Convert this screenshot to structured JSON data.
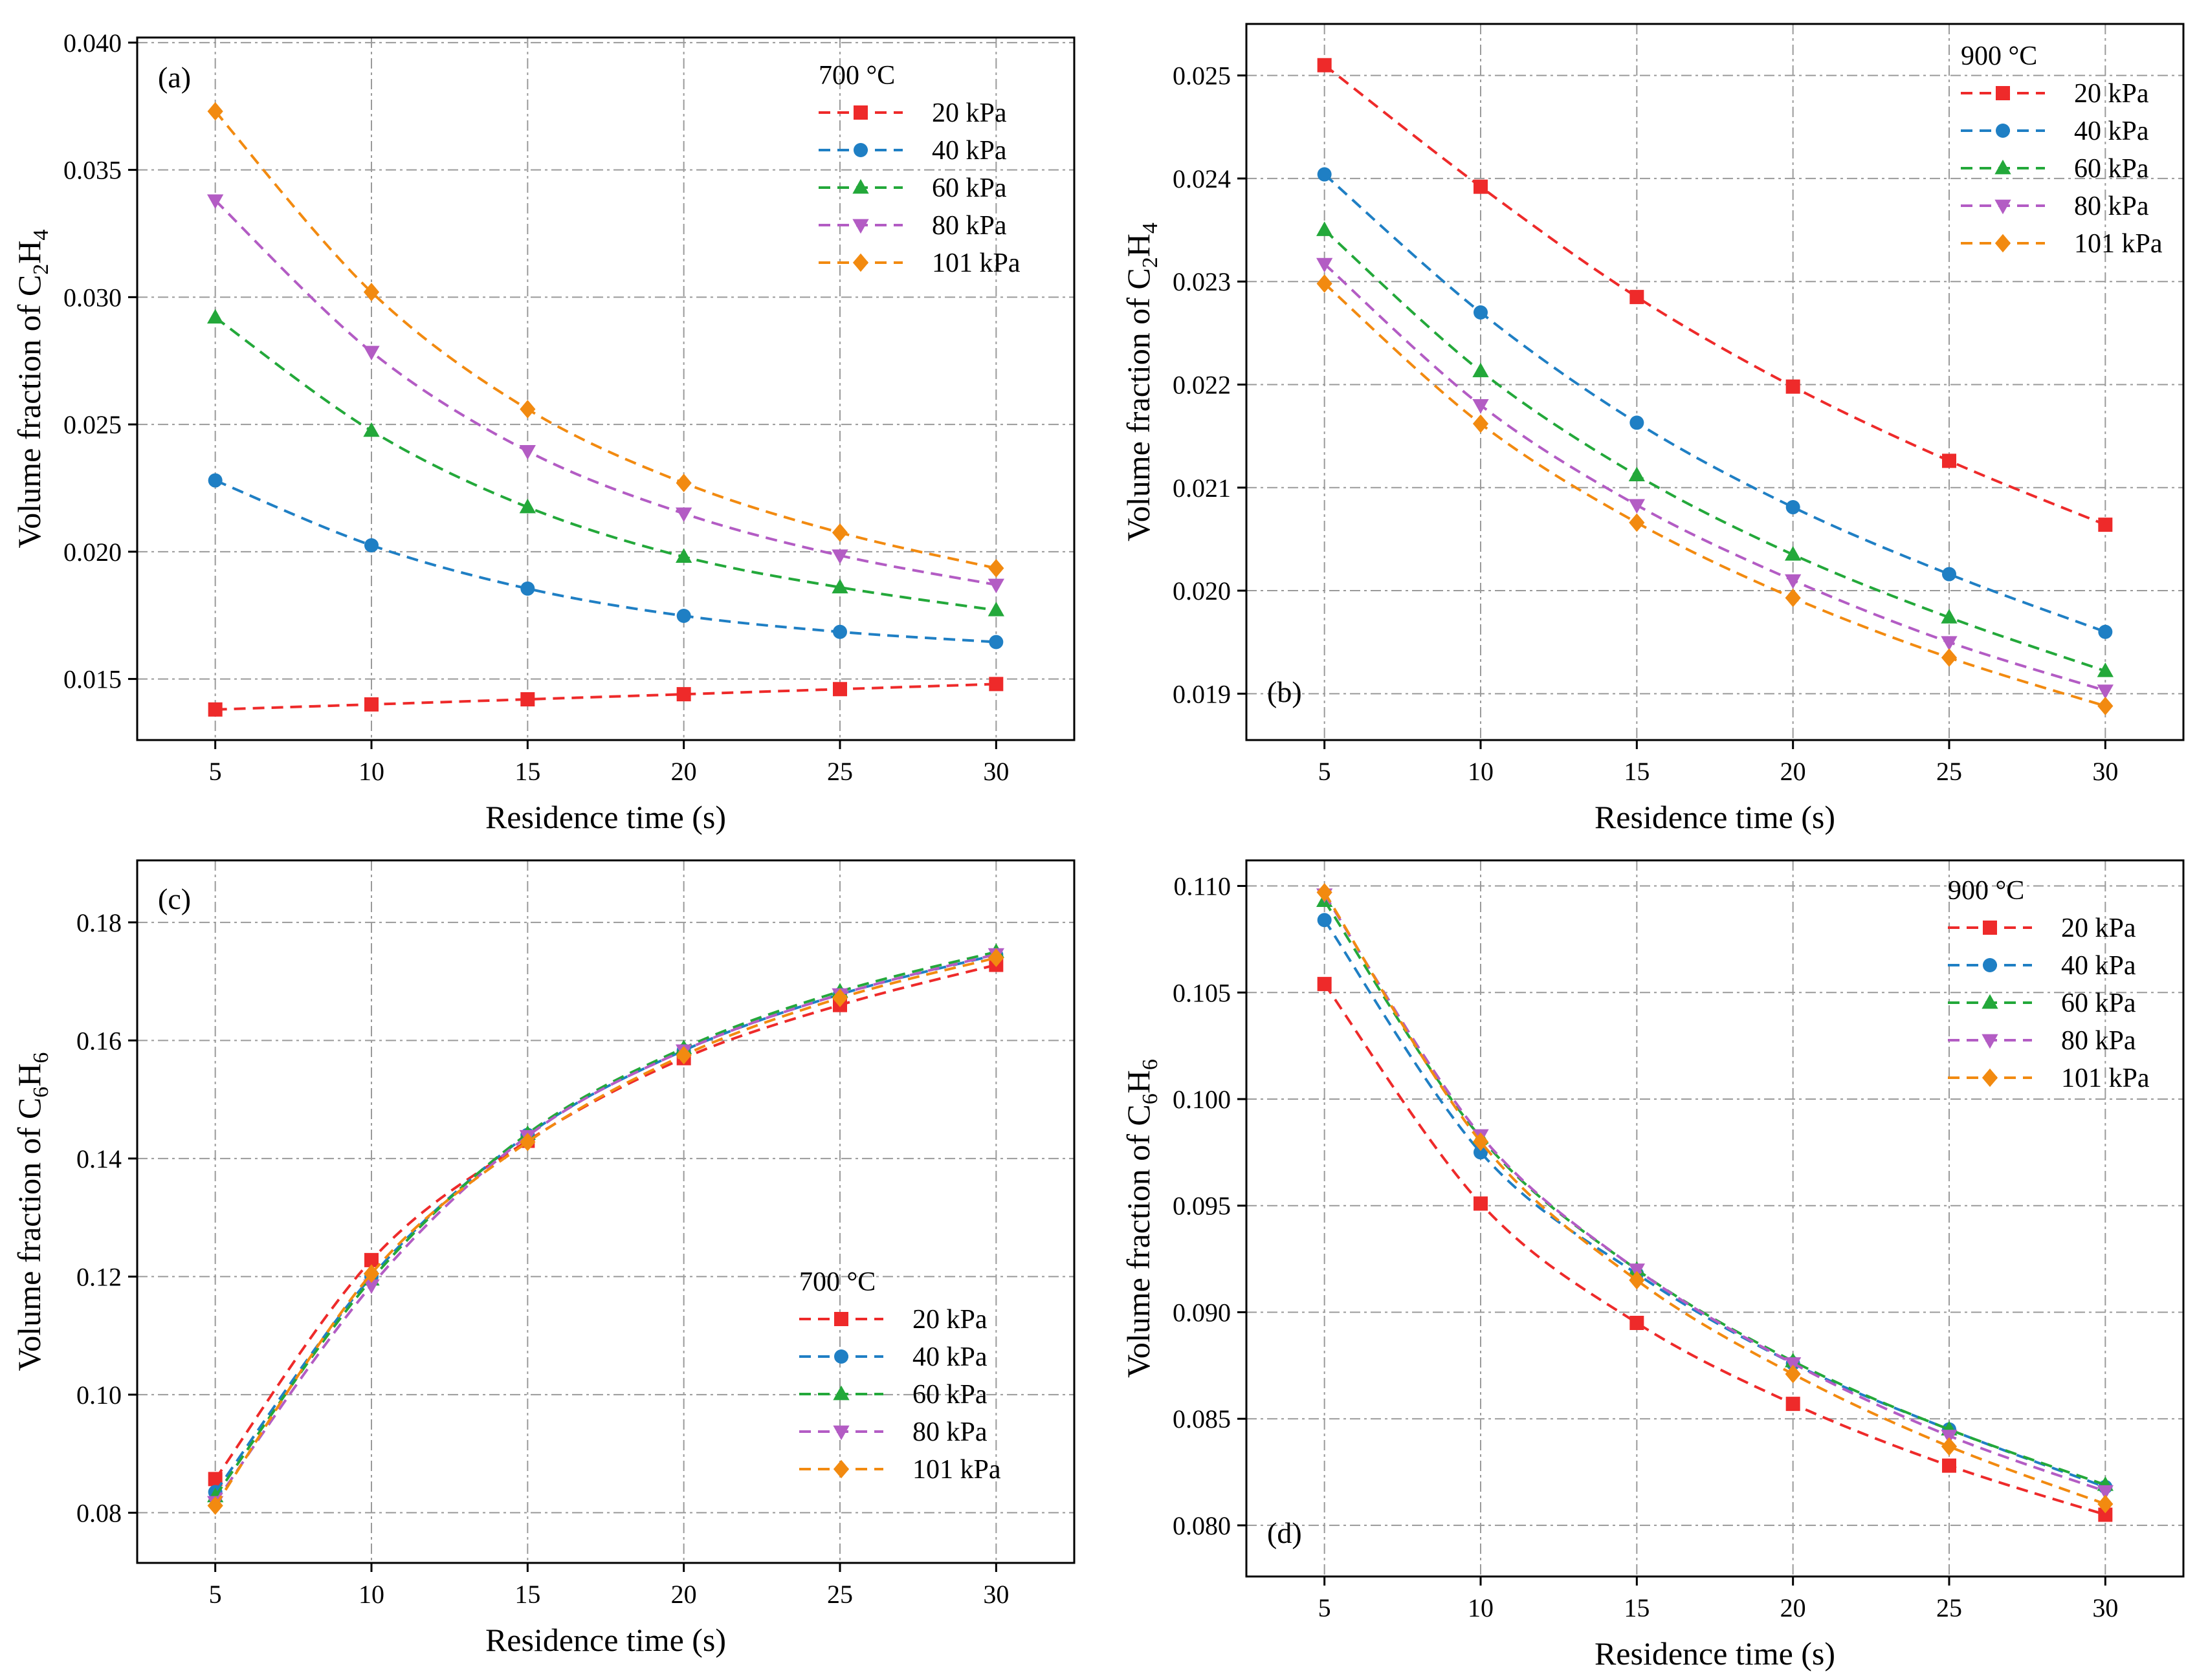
{
  "figure_title": "",
  "chart_data": [
    {
      "type": "line",
      "panel_label": "(a)",
      "title": "",
      "xlabel": "Residence time (s)",
      "ylabel": "Volume fraction of C2H4",
      "ylabel_parts": {
        "prefix": "Volume fraction of C",
        "sub1": "2",
        "mid": "H",
        "sub2": "4"
      },
      "x": [
        5,
        10,
        15,
        20,
        25,
        30
      ],
      "xlim": [
        2.5,
        32.5
      ],
      "ylim": [
        0.0126,
        0.0402
      ],
      "xticks": [
        5,
        10,
        15,
        20,
        25,
        30
      ],
      "yticks": [
        0.015,
        0.02,
        0.025,
        0.03,
        0.035,
        0.04
      ],
      "ytick_labels": [
        "0.015",
        "0.020",
        "0.025",
        "0.030",
        "0.035",
        "0.040"
      ],
      "legend_title": "700 °C",
      "legend_position": "top-right",
      "series": [
        {
          "name": "20 kPa",
          "color": "#ee2a2a",
          "marker": "square",
          "values": [
            0.0138,
            0.014,
            0.0142,
            0.0144,
            0.0146,
            0.0148
          ]
        },
        {
          "name": "40 kPa",
          "color": "#1f7fc4",
          "marker": "circle",
          "values": [
            0.0228,
            0.02025,
            0.01855,
            0.01748,
            0.01685,
            0.01645
          ]
        },
        {
          "name": "60 kPa",
          "color": "#23a83a",
          "marker": "triangle-up",
          "values": [
            0.0292,
            0.02475,
            0.02175,
            0.0198,
            0.0186,
            0.0177
          ]
        },
        {
          "name": "80 kPa",
          "color": "#b35cc4",
          "marker": "triangle-down",
          "values": [
            0.0338,
            0.02785,
            0.02395,
            0.0215,
            0.01985,
            0.0187
          ]
        },
        {
          "name": "101 kPa",
          "color": "#f28a10",
          "marker": "diamond",
          "values": [
            0.0373,
            0.0302,
            0.0256,
            0.0227,
            0.02075,
            0.01935
          ]
        }
      ]
    },
    {
      "type": "line",
      "panel_label": "(b)",
      "title": "",
      "xlabel": "Residence time (s)",
      "ylabel": "Volume fraction of C2H4",
      "ylabel_parts": {
        "prefix": "Volume fraction of C",
        "sub1": "2",
        "mid": "H",
        "sub2": "4"
      },
      "x": [
        5,
        10,
        15,
        20,
        25,
        30
      ],
      "xlim": [
        2.5,
        32.5
      ],
      "ylim": [
        0.01855,
        0.0255
      ],
      "xticks": [
        5,
        10,
        15,
        20,
        25,
        30
      ],
      "yticks": [
        0.019,
        0.02,
        0.021,
        0.022,
        0.023,
        0.024,
        0.025
      ],
      "ytick_labels": [
        "0.019",
        "0.020",
        "0.021",
        "0.022",
        "0.023",
        "0.024",
        "0.025"
      ],
      "legend_title": "900 °C",
      "legend_position": "top-right",
      "series": [
        {
          "name": "20 kPa",
          "color": "#ee2a2a",
          "marker": "square",
          "values": [
            0.0251,
            0.02392,
            0.02285,
            0.02198,
            0.02126,
            0.02064
          ]
        },
        {
          "name": "40 kPa",
          "color": "#1f7fc4",
          "marker": "circle",
          "values": [
            0.02404,
            0.0227,
            0.02163,
            0.02081,
            0.02016,
            0.0196
          ]
        },
        {
          "name": "60 kPa",
          "color": "#23a83a",
          "marker": "triangle-up",
          "values": [
            0.0235,
            0.02213,
            0.02112,
            0.02035,
            0.01974,
            0.01922
          ]
        },
        {
          "name": "80 kPa",
          "color": "#b35cc4",
          "marker": "triangle-down",
          "values": [
            0.02317,
            0.0218,
            0.02083,
            0.0201,
            0.0195,
            0.01903
          ]
        },
        {
          "name": "101 kPa",
          "color": "#f28a10",
          "marker": "diamond",
          "values": [
            0.02298,
            0.02162,
            0.02066,
            0.01993,
            0.01935,
            0.01888
          ]
        }
      ]
    },
    {
      "type": "line",
      "panel_label": "(c)",
      "title": "",
      "xlabel": "Residence time (s)",
      "ylabel": "Volume fraction of C6H6",
      "ylabel_parts": {
        "prefix": "Volume fraction of C",
        "sub1": "6",
        "mid": "H",
        "sub2": "6"
      },
      "x": [
        5,
        10,
        15,
        20,
        25,
        30
      ],
      "xlim": [
        2.5,
        32.5
      ],
      "ylim": [
        0.0715,
        0.1905
      ],
      "xticks": [
        5,
        10,
        15,
        20,
        25,
        30
      ],
      "yticks": [
        0.08,
        0.1,
        0.12,
        0.14,
        0.16,
        0.18
      ],
      "ytick_labels": [
        "0.08",
        "0.10",
        "0.12",
        "0.14",
        "0.16",
        "0.18"
      ],
      "legend_title": "700 °C",
      "legend_position": "bottom-right",
      "series": [
        {
          "name": "20 kPa",
          "color": "#ee2a2a",
          "marker": "square",
          "values": [
            0.0857,
            0.1228,
            0.143,
            0.157,
            0.166,
            0.1728
          ]
        },
        {
          "name": "40 kPa",
          "color": "#1f7fc4",
          "marker": "circle",
          "values": [
            0.0835,
            0.12,
            0.144,
            0.1583,
            0.1678,
            0.1745
          ]
        },
        {
          "name": "60 kPa",
          "color": "#23a83a",
          "marker": "triangle-up",
          "values": [
            0.0828,
            0.1195,
            0.1442,
            0.1587,
            0.1683,
            0.175
          ]
        },
        {
          "name": "80 kPa",
          "color": "#b35cc4",
          "marker": "triangle-down",
          "values": [
            0.0818,
            0.1185,
            0.1438,
            0.1583,
            0.1678,
            0.1746
          ]
        },
        {
          "name": "101 kPa",
          "color": "#f28a10",
          "marker": "diamond",
          "values": [
            0.0812,
            0.1205,
            0.1428,
            0.1575,
            0.1672,
            0.174
          ]
        }
      ]
    },
    {
      "type": "line",
      "panel_label": "(d)",
      "title": "",
      "xlabel": "Residence time (s)",
      "ylabel": "Volume fraction of C6H6",
      "ylabel_parts": {
        "prefix": "Volume fraction of C",
        "sub1": "6",
        "mid": "H",
        "sub2": "6"
      },
      "x": [
        5,
        10,
        15,
        20,
        25,
        30
      ],
      "xlim": [
        2.5,
        32.5
      ],
      "ylim": [
        0.0776,
        0.1112
      ],
      "xticks": [
        5,
        10,
        15,
        20,
        25,
        30
      ],
      "yticks": [
        0.08,
        0.085,
        0.09,
        0.095,
        0.1,
        0.105,
        0.11
      ],
      "ytick_labels": [
        "0.080",
        "0.085",
        "0.090",
        "0.095",
        "0.100",
        "0.105",
        "0.110"
      ],
      "legend_title": "900 °C",
      "legend_position": "top-right",
      "series": [
        {
          "name": "20 kPa",
          "color": "#ee2a2a",
          "marker": "square",
          "values": [
            0.1054,
            0.0951,
            0.0895,
            0.0857,
            0.0828,
            0.0805
          ]
        },
        {
          "name": "40 kPa",
          "color": "#1f7fc4",
          "marker": "circle",
          "values": [
            0.1084,
            0.0975,
            0.0918,
            0.0876,
            0.0845,
            0.0818
          ]
        },
        {
          "name": "60 kPa",
          "color": "#23a83a",
          "marker": "triangle-up",
          "values": [
            0.1093,
            0.0982,
            0.092,
            0.0877,
            0.0845,
            0.0819
          ]
        },
        {
          "name": "80 kPa",
          "color": "#b35cc4",
          "marker": "triangle-down",
          "values": [
            0.1096,
            0.0983,
            0.092,
            0.0876,
            0.0842,
            0.0816
          ]
        },
        {
          "name": "101 kPa",
          "color": "#f28a10",
          "marker": "diamond",
          "values": [
            0.1097,
            0.098,
            0.0915,
            0.0871,
            0.0837,
            0.081
          ]
        }
      ]
    }
  ]
}
